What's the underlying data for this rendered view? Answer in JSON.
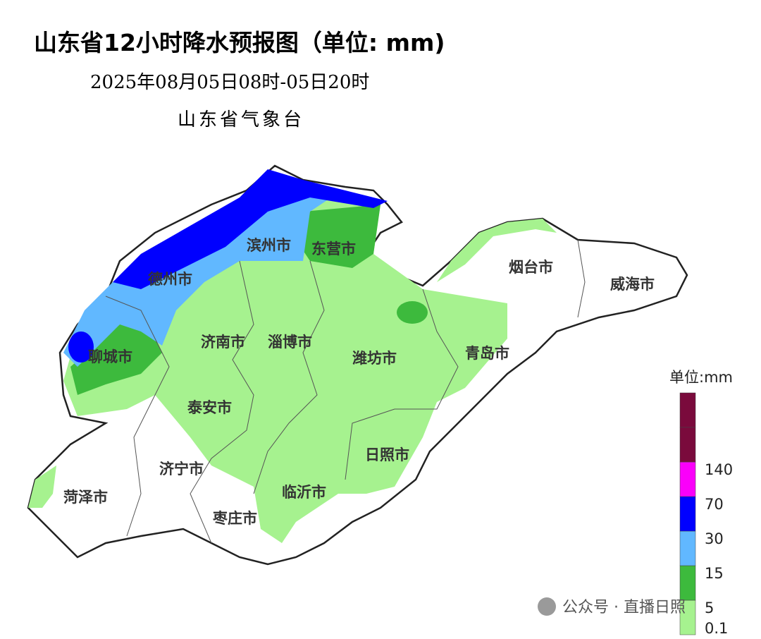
{
  "header": {
    "title": "山东省12小时降水预报图（单位: mm)",
    "time": "2025年08月05日08时-05日20时",
    "issuer": "山东省气象台"
  },
  "cities": [
    "滨州市",
    "东营市",
    "德州市",
    "烟台市",
    "威海市",
    "济南市",
    "淄博市",
    "聊城市",
    "潍坊市",
    "青岛市",
    "泰安市",
    "日照市",
    "济宁市",
    "临沂市",
    "菏泽市",
    "枣庄市"
  ],
  "legend": {
    "title": "单位:mm",
    "above_color": "#7a0a3c",
    "levels": [
      {
        "value": 0.1,
        "color": "#a6f28f"
      },
      {
        "value": 5,
        "color": "#3dba3d"
      },
      {
        "value": 15,
        "color": "#61b8ff"
      },
      {
        "value": 30,
        "color": "#0000ff"
      },
      {
        "value": 70,
        "color": "#fa00fa"
      },
      {
        "value": 140,
        "color": "#7a0a3c"
      }
    ]
  },
  "watermark": "公众号 · 直播日照"
}
